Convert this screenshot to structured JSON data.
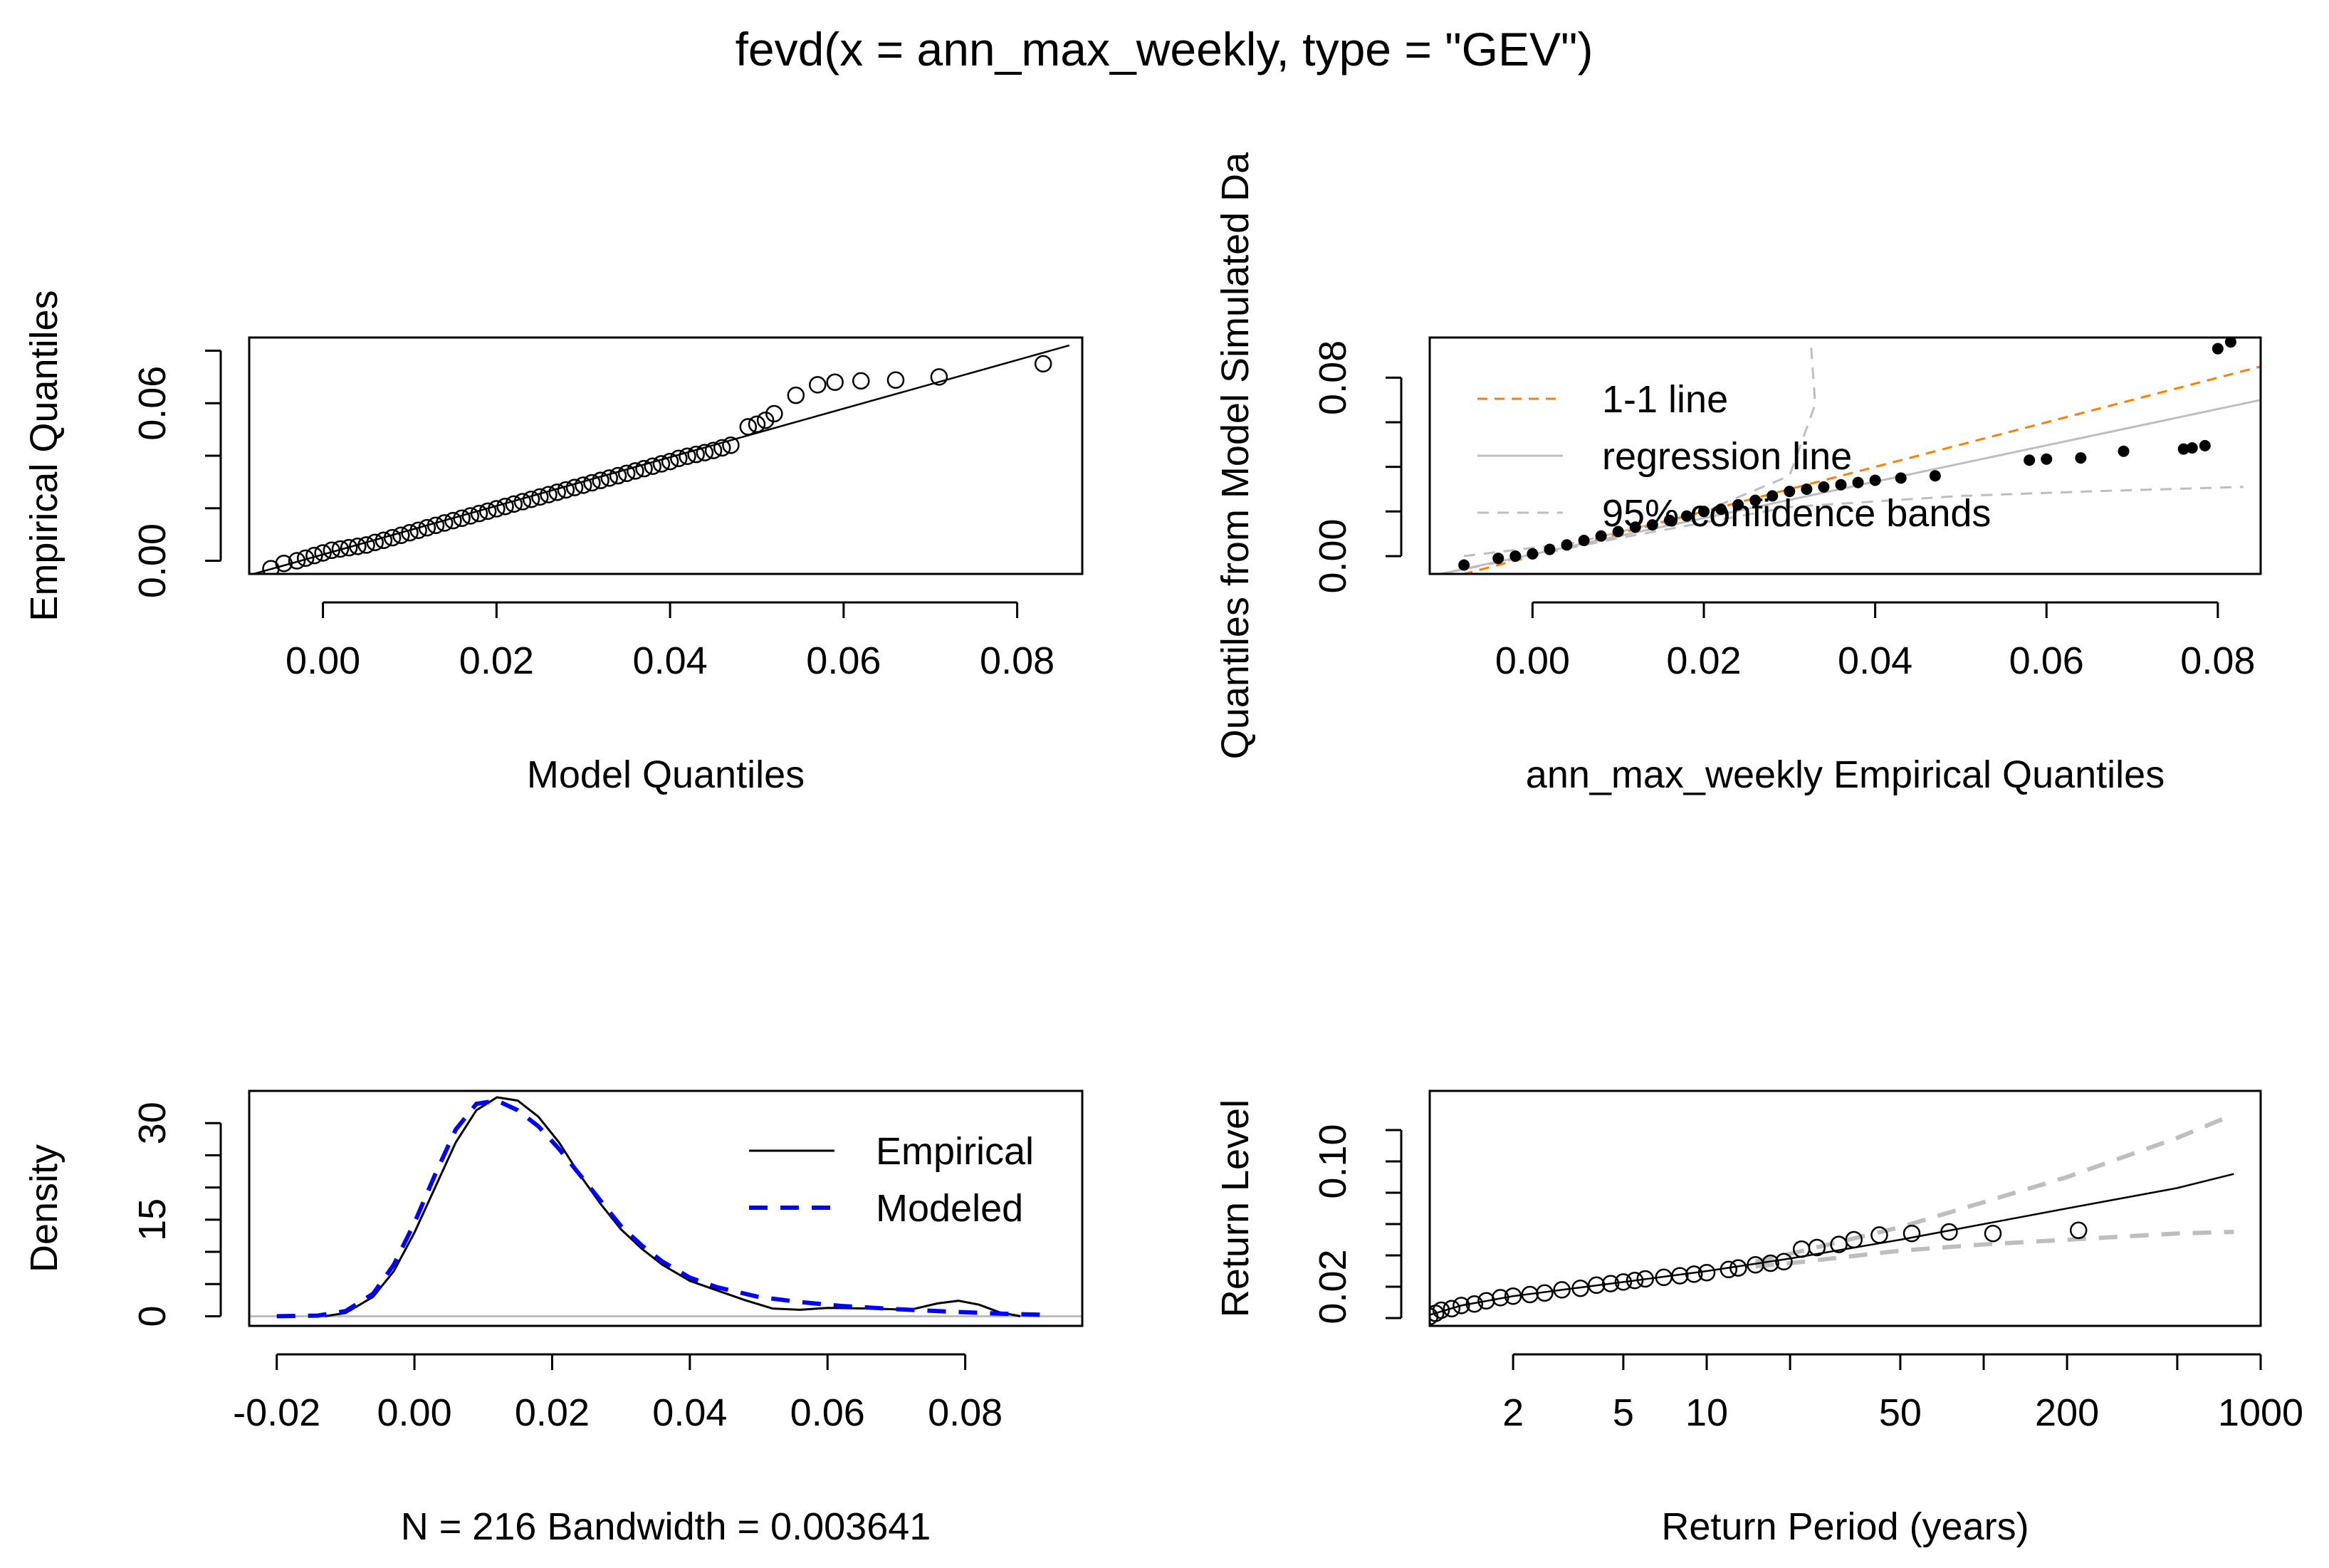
{
  "main_title": "fevd(x = ann_max_weekly, type = \"GEV\")",
  "colors": {
    "orange": "#ff7f00",
    "gray": "#bebebe",
    "blue": "#0000ff",
    "black": "#000000"
  },
  "chart_data": [
    {
      "id": "qq_model",
      "type": "scatter",
      "xlabel": "Model Quantiles",
      "ylabel": "Empirical Quantiles",
      "xlim": [
        -0.0085,
        0.0875
      ],
      "ylim": [
        -0.005,
        0.085
      ],
      "x_ticks": [
        "0.00",
        "0.02",
        "0.04",
        "0.06",
        "0.08"
      ],
      "x_tick_values": [
        0,
        0.02,
        0.04,
        0.06,
        0.08
      ],
      "y_ticks": [
        "0.00",
        "0.06"
      ],
      "y_tick_values": [
        0,
        0.06
      ],
      "y_minor_ticks": [
        0.02,
        0.04,
        0.08
      ],
      "line": [
        [
          -0.008,
          -0.005
        ],
        [
          0.086,
          0.082
        ]
      ],
      "points": [
        [
          -0.006,
          -0.003
        ],
        [
          -0.0045,
          -0.001
        ],
        [
          -0.003,
          0.0
        ],
        [
          -0.002,
          0.001
        ],
        [
          -0.001,
          0.002
        ],
        [
          0.0,
          0.003
        ],
        [
          0.001,
          0.004
        ],
        [
          0.002,
          0.0045
        ],
        [
          0.003,
          0.005
        ],
        [
          0.004,
          0.0055
        ],
        [
          0.005,
          0.006
        ],
        [
          0.006,
          0.007
        ],
        [
          0.007,
          0.0078
        ],
        [
          0.008,
          0.0088
        ],
        [
          0.009,
          0.0097
        ],
        [
          0.01,
          0.0107
        ],
        [
          0.011,
          0.0116
        ],
        [
          0.012,
          0.0126
        ],
        [
          0.013,
          0.0135
        ],
        [
          0.014,
          0.0144
        ],
        [
          0.015,
          0.0153
        ],
        [
          0.016,
          0.0162
        ],
        [
          0.017,
          0.0171
        ],
        [
          0.018,
          0.018
        ],
        [
          0.019,
          0.0189
        ],
        [
          0.02,
          0.0198
        ],
        [
          0.021,
          0.0207
        ],
        [
          0.022,
          0.0216
        ],
        [
          0.023,
          0.0225
        ],
        [
          0.024,
          0.0234
        ],
        [
          0.025,
          0.0243
        ],
        [
          0.026,
          0.0252
        ],
        [
          0.027,
          0.0261
        ],
        [
          0.028,
          0.027
        ],
        [
          0.029,
          0.0279
        ],
        [
          0.03,
          0.0288
        ],
        [
          0.031,
          0.0297
        ],
        [
          0.032,
          0.0306
        ],
        [
          0.033,
          0.0315
        ],
        [
          0.034,
          0.0324
        ],
        [
          0.035,
          0.0333
        ],
        [
          0.036,
          0.0342
        ],
        [
          0.037,
          0.0351
        ],
        [
          0.038,
          0.036
        ],
        [
          0.039,
          0.0369
        ],
        [
          0.04,
          0.0378
        ],
        [
          0.041,
          0.039
        ],
        [
          0.042,
          0.0398
        ],
        [
          0.043,
          0.0405
        ],
        [
          0.044,
          0.0412
        ],
        [
          0.045,
          0.042
        ],
        [
          0.046,
          0.043
        ],
        [
          0.047,
          0.044
        ],
        [
          0.049,
          0.051
        ],
        [
          0.05,
          0.052
        ],
        [
          0.051,
          0.0535
        ],
        [
          0.052,
          0.056
        ],
        [
          0.0545,
          0.063
        ],
        [
          0.057,
          0.067
        ],
        [
          0.059,
          0.068
        ],
        [
          0.062,
          0.0685
        ],
        [
          0.066,
          0.0688
        ],
        [
          0.071,
          0.07
        ],
        [
          0.083,
          0.075
        ]
      ]
    },
    {
      "id": "qq_simulated",
      "type": "scatter",
      "xlabel": "ann_max_weekly Empirical Quantiles",
      "ylabel": "Quantiles from Model Simulated Da",
      "xlim": [
        -0.012,
        0.085
      ],
      "ylim": [
        -0.008,
        0.098
      ],
      "x_ticks": [
        "0.00",
        "0.02",
        "0.04",
        "0.06",
        "0.08"
      ],
      "x_tick_values": [
        0,
        0.02,
        0.04,
        0.06,
        0.08
      ],
      "y_ticks": [
        "0.00",
        "0.08"
      ],
      "y_tick_values": [
        0,
        0.08
      ],
      "y_minor_ticks": [
        0.02,
        0.04,
        0.06
      ],
      "legend": [
        "1-1 line",
        "regression line",
        "95% confidence bands"
      ],
      "one_to_one": [
        [
          -0.012,
          -0.012
        ],
        [
          0.085,
          0.085
        ]
      ],
      "regression": [
        [
          -0.012,
          -0.009
        ],
        [
          0.085,
          0.07
        ]
      ],
      "ci_upper": [
        [
          -0.008,
          0.0
        ],
        [
          0.005,
          0.006
        ],
        [
          0.02,
          0.02
        ],
        [
          0.03,
          0.036
        ],
        [
          0.033,
          0.068
        ],
        [
          0.0325,
          0.095
        ]
      ],
      "ci_lower": [
        [
          -0.012,
          -0.009
        ],
        [
          0.01,
          0.008
        ],
        [
          0.03,
          0.022
        ],
        [
          0.05,
          0.027
        ],
        [
          0.065,
          0.029
        ],
        [
          0.083,
          0.031
        ]
      ],
      "points": [
        [
          -0.008,
          -0.004
        ],
        [
          -0.004,
          -0.001
        ],
        [
          -0.002,
          0.0
        ],
        [
          0.0,
          0.001
        ],
        [
          0.002,
          0.003
        ],
        [
          0.004,
          0.005
        ],
        [
          0.006,
          0.007
        ],
        [
          0.008,
          0.009
        ],
        [
          0.01,
          0.011
        ],
        [
          0.012,
          0.013
        ],
        [
          0.014,
          0.014
        ],
        [
          0.016,
          0.016
        ],
        [
          0.018,
          0.018
        ],
        [
          0.02,
          0.02
        ],
        [
          0.022,
          0.021
        ],
        [
          0.024,
          0.023
        ],
        [
          0.026,
          0.025
        ],
        [
          0.028,
          0.027
        ],
        [
          0.03,
          0.029
        ],
        [
          0.032,
          0.03
        ],
        [
          0.034,
          0.031
        ],
        [
          0.036,
          0.032
        ],
        [
          0.038,
          0.033
        ],
        [
          0.04,
          0.034
        ],
        [
          0.043,
          0.035
        ],
        [
          0.047,
          0.036
        ],
        [
          0.058,
          0.043
        ],
        [
          0.06,
          0.0435
        ],
        [
          0.064,
          0.044
        ],
        [
          0.069,
          0.047
        ],
        [
          0.076,
          0.048
        ],
        [
          0.077,
          0.0485
        ],
        [
          0.0785,
          0.0495
        ],
        [
          0.08,
          0.093
        ],
        [
          0.0815,
          0.096
        ]
      ]
    },
    {
      "id": "density",
      "type": "line",
      "xlabel": "N = 216   Bandwidth = 0.003641",
      "ylabel": "Density",
      "xlim": [
        -0.024,
        0.097
      ],
      "ylim": [
        -1.5,
        35
      ],
      "x_ticks": [
        "-0.02",
        "0.00",
        "0.02",
        "0.04",
        "0.06",
        "0.08"
      ],
      "x_tick_values": [
        -0.02,
        0,
        0.02,
        0.04,
        0.06,
        0.08
      ],
      "y_ticks": [
        "0",
        "15",
        "30"
      ],
      "y_tick_values": [
        0,
        15,
        30
      ],
      "y_minor_ticks": [
        5,
        10,
        20,
        25
      ],
      "legend": [
        "Empirical",
        "Modeled"
      ],
      "series": [
        {
          "name": "Empirical",
          "points": [
            [
              -0.013,
              0
            ],
            [
              -0.01,
              0.5
            ],
            [
              -0.006,
              3
            ],
            [
              -0.003,
              7
            ],
            [
              0.0,
              13
            ],
            [
              0.003,
              20
            ],
            [
              0.006,
              27
            ],
            [
              0.009,
              32
            ],
            [
              0.012,
              34
            ],
            [
              0.015,
              33.5
            ],
            [
              0.018,
              31
            ],
            [
              0.021,
              27
            ],
            [
              0.024,
              22
            ],
            [
              0.027,
              17.5
            ],
            [
              0.03,
              13.5
            ],
            [
              0.033,
              10.5
            ],
            [
              0.036,
              8
            ],
            [
              0.04,
              5.5
            ],
            [
              0.044,
              4
            ],
            [
              0.048,
              2.5
            ],
            [
              0.052,
              1.2
            ],
            [
              0.056,
              1
            ],
            [
              0.06,
              1.3
            ],
            [
              0.066,
              1.2
            ],
            [
              0.072,
              1
            ],
            [
              0.076,
              2
            ],
            [
              0.079,
              2.4
            ],
            [
              0.082,
              1.8
            ],
            [
              0.085,
              0.6
            ],
            [
              0.088,
              0
            ]
          ]
        },
        {
          "name": "Modeled",
          "points": [
            [
              -0.02,
              0
            ],
            [
              -0.014,
              0.1
            ],
            [
              -0.01,
              0.8
            ],
            [
              -0.006,
              3.5
            ],
            [
              -0.003,
              8
            ],
            [
              0.0,
              14.5
            ],
            [
              0.003,
              22
            ],
            [
              0.006,
              29
            ],
            [
              0.009,
              33
            ],
            [
              0.012,
              33.5
            ],
            [
              0.015,
              32
            ],
            [
              0.018,
              29.5
            ],
            [
              0.021,
              26
            ],
            [
              0.024,
              22
            ],
            [
              0.027,
              18
            ],
            [
              0.03,
              14
            ],
            [
              0.033,
              11
            ],
            [
              0.036,
              8.5
            ],
            [
              0.04,
              6
            ],
            [
              0.044,
              4.5
            ],
            [
              0.05,
              3
            ],
            [
              0.056,
              2.2
            ],
            [
              0.062,
              1.6
            ],
            [
              0.07,
              1.1
            ],
            [
              0.078,
              0.7
            ],
            [
              0.085,
              0.4
            ],
            [
              0.092,
              0.2
            ]
          ]
        }
      ]
    },
    {
      "id": "return_level",
      "type": "line",
      "xlabel": "Return Period (years)",
      "ylabel": "Return Level",
      "x_scale": "log",
      "xlim": [
        1.0,
        1000
      ],
      "ylim": [
        -0.005,
        0.145
      ],
      "x_ticks": [
        "2",
        "5",
        "10",
        "50",
        "200",
        "1000"
      ],
      "x_tick_values": [
        2,
        5,
        10,
        50,
        200,
        1000
      ],
      "x_minor_ticks": [
        20,
        100,
        500
      ],
      "y_ticks": [
        "0.02",
        "0.10"
      ],
      "y_tick_values": [
        0.02,
        0.1
      ],
      "y_minor_ticks": [
        0.0,
        0.04,
        0.06,
        0.08,
        0.12
      ],
      "fitted": [
        [
          1.0,
          0.002
        ],
        [
          1.3,
          0.008
        ],
        [
          2,
          0.014
        ],
        [
          3,
          0.018
        ],
        [
          5,
          0.023
        ],
        [
          10,
          0.03
        ],
        [
          20,
          0.038
        ],
        [
          50,
          0.05
        ],
        [
          100,
          0.06
        ],
        [
          200,
          0.07
        ],
        [
          500,
          0.083
        ],
        [
          800,
          0.092
        ]
      ],
      "ci_upper": [
        [
          15,
          0.036
        ],
        [
          20,
          0.041
        ],
        [
          50,
          0.058
        ],
        [
          100,
          0.074
        ],
        [
          200,
          0.09
        ],
        [
          500,
          0.115
        ],
        [
          800,
          0.13
        ]
      ],
      "ci_lower": [
        [
          15,
          0.033
        ],
        [
          20,
          0.035
        ],
        [
          50,
          0.043
        ],
        [
          100,
          0.047
        ],
        [
          200,
          0.05
        ],
        [
          500,
          0.054
        ],
        [
          800,
          0.055
        ]
      ],
      "points": [
        [
          1.0,
          0.001
        ],
        [
          1.05,
          0.003
        ],
        [
          1.1,
          0.005
        ],
        [
          1.2,
          0.006
        ],
        [
          1.3,
          0.008
        ],
        [
          1.45,
          0.009
        ],
        [
          1.6,
          0.011
        ],
        [
          1.8,
          0.013
        ],
        [
          2.0,
          0.014
        ],
        [
          2.3,
          0.015
        ],
        [
          2.6,
          0.016
        ],
        [
          3.0,
          0.018
        ],
        [
          3.5,
          0.019
        ],
        [
          4.0,
          0.021
        ],
        [
          4.5,
          0.022
        ],
        [
          5.0,
          0.023
        ],
        [
          5.5,
          0.024
        ],
        [
          6.0,
          0.025
        ],
        [
          7.0,
          0.026
        ],
        [
          8.0,
          0.027
        ],
        [
          9.0,
          0.028
        ],
        [
          10,
          0.029
        ],
        [
          12,
          0.031
        ],
        [
          13,
          0.032
        ],
        [
          15,
          0.034
        ],
        [
          17,
          0.035
        ],
        [
          19,
          0.036
        ],
        [
          22,
          0.044
        ],
        [
          25,
          0.045
        ],
        [
          30,
          0.047
        ],
        [
          34,
          0.05
        ],
        [
          42,
          0.053
        ],
        [
          55,
          0.054
        ],
        [
          75,
          0.055
        ],
        [
          108,
          0.054
        ],
        [
          220,
          0.056
        ]
      ]
    }
  ]
}
